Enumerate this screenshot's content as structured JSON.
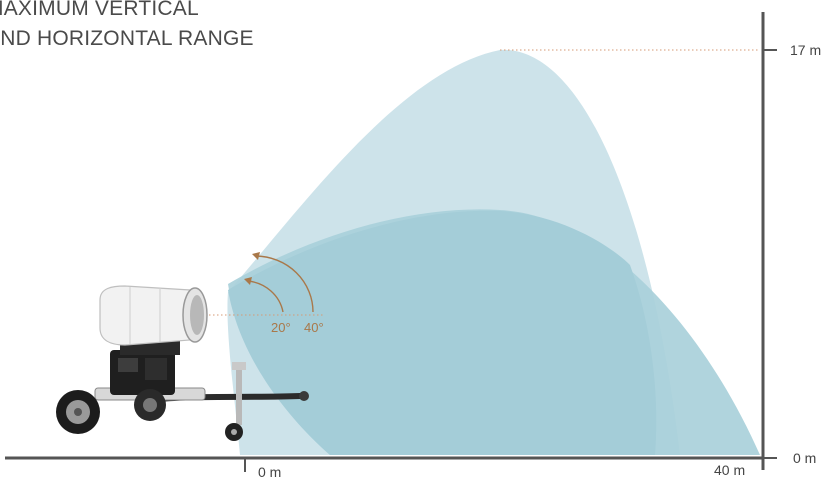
{
  "title": {
    "line1": "MAXIMUM VERTICAL",
    "line2": "AND HORIZONTAL RANGE"
  },
  "vertical_axis": {
    "top_label": "17 m",
    "bottom_label": "0 m"
  },
  "horizontal_axis": {
    "start_label": "0 m",
    "end_label": "40 m"
  },
  "angles": {
    "low": "20°",
    "high": "40°"
  },
  "colors": {
    "spray_high": "#cde3ea",
    "spray_low": "#a9d0da",
    "axis": "#555555",
    "angle_accent": "#a9784a"
  },
  "icons": [
    "mist-cannon-icon"
  ]
}
